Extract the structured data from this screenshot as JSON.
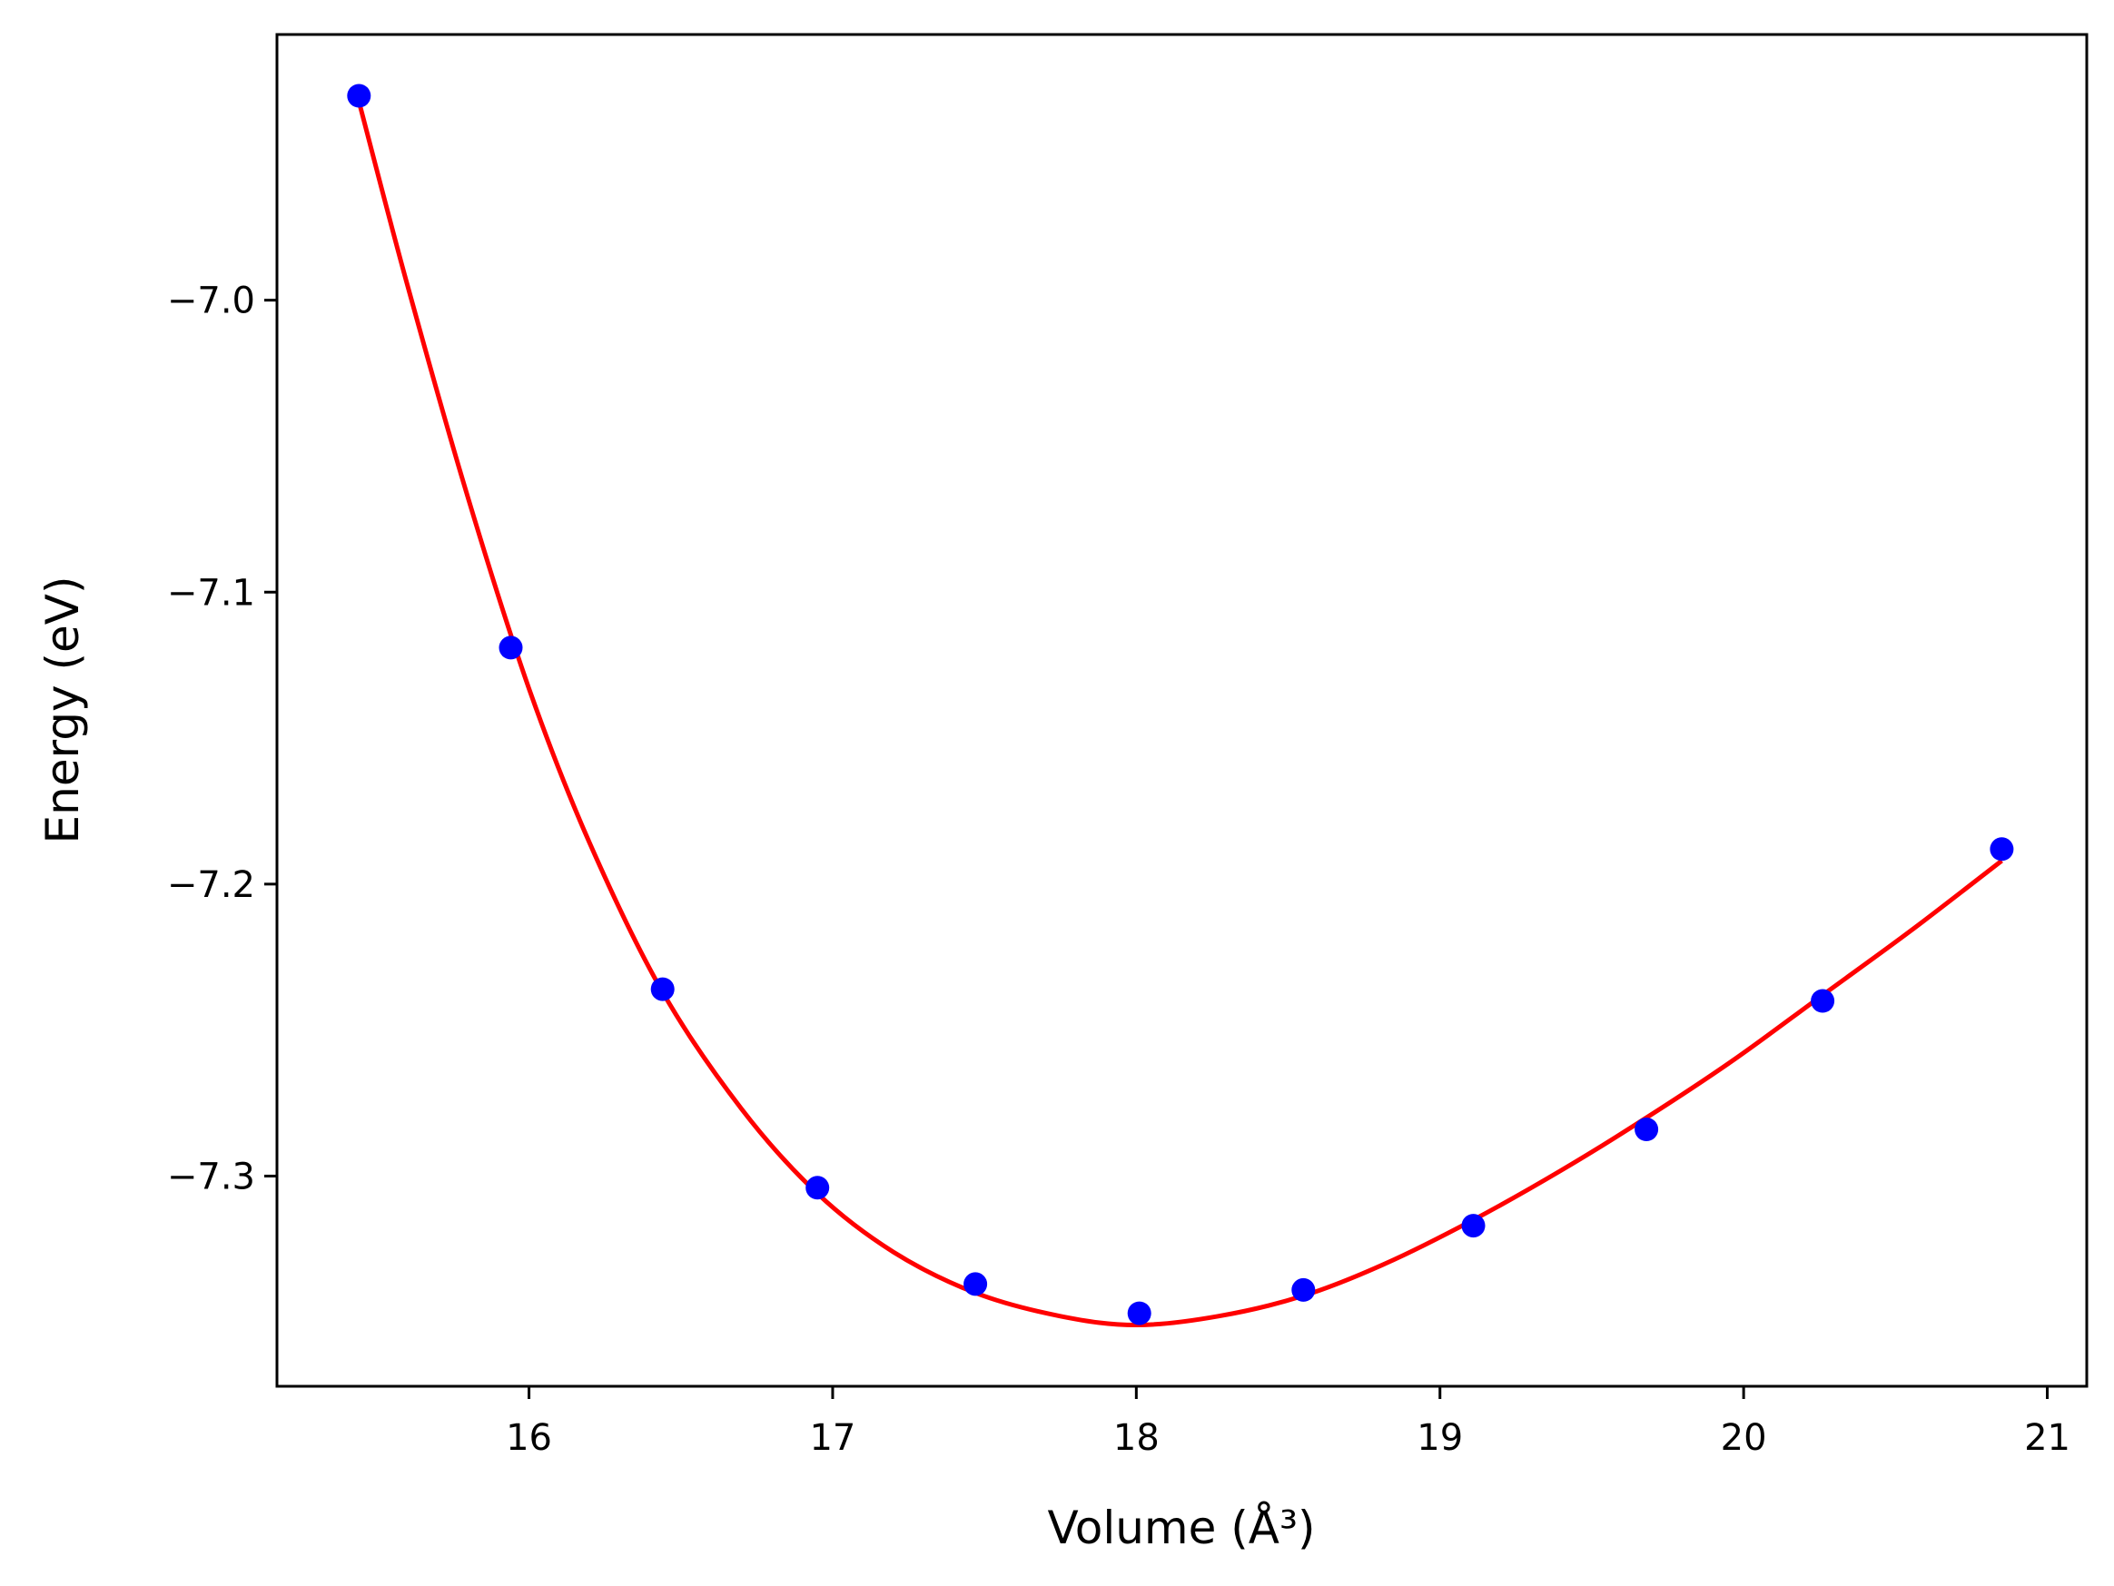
{
  "chart_data": {
    "type": "scatter",
    "xlabel": "Volume (Å³)",
    "ylabel": "Energy (eV)",
    "xlim": [
      15.17,
      21.13
    ],
    "ylim": [
      -7.372,
      -6.909
    ],
    "grid": false,
    "x_ticks": [
      {
        "value": 16,
        "label": "16"
      },
      {
        "value": 17,
        "label": "17"
      },
      {
        "value": 18,
        "label": "18"
      },
      {
        "value": 19,
        "label": "19"
      },
      {
        "value": 20,
        "label": "20"
      },
      {
        "value": 21,
        "label": "21"
      }
    ],
    "y_ticks": [
      {
        "value": -7.0,
        "label": "−7.0"
      },
      {
        "value": -7.1,
        "label": "−7.1"
      },
      {
        "value": -7.2,
        "label": "−7.2"
      },
      {
        "value": -7.3,
        "label": "−7.3"
      }
    ],
    "series": [
      {
        "kind": "scatter",
        "color": "#0000ff",
        "points": [
          {
            "x": 15.44,
            "y": -6.93
          },
          {
            "x": 15.94,
            "y": -7.119
          },
          {
            "x": 16.44,
            "y": -7.236
          },
          {
            "x": 16.95,
            "y": -7.304
          },
          {
            "x": 17.47,
            "y": -7.337
          },
          {
            "x": 18.01,
            "y": -7.347
          },
          {
            "x": 18.55,
            "y": -7.339
          },
          {
            "x": 19.11,
            "y": -7.317
          },
          {
            "x": 19.68,
            "y": -7.284
          },
          {
            "x": 20.26,
            "y": -7.24
          },
          {
            "x": 20.85,
            "y": -7.188
          }
        ]
      },
      {
        "kind": "line",
        "color": "#ff0000",
        "points": [
          {
            "x": 15.44,
            "y": -6.932
          },
          {
            "x": 15.6,
            "y": -6.995
          },
          {
            "x": 15.8,
            "y": -7.068
          },
          {
            "x": 16.0,
            "y": -7.133
          },
          {
            "x": 16.2,
            "y": -7.186
          },
          {
            "x": 16.44,
            "y": -7.237
          },
          {
            "x": 16.7,
            "y": -7.277
          },
          {
            "x": 16.95,
            "y": -7.306
          },
          {
            "x": 17.2,
            "y": -7.326
          },
          {
            "x": 17.47,
            "y": -7.34
          },
          {
            "x": 17.75,
            "y": -7.348
          },
          {
            "x": 18.0,
            "y": -7.351
          },
          {
            "x": 18.27,
            "y": -7.348
          },
          {
            "x": 18.55,
            "y": -7.341
          },
          {
            "x": 18.82,
            "y": -7.33
          },
          {
            "x": 19.11,
            "y": -7.315
          },
          {
            "x": 19.4,
            "y": -7.298
          },
          {
            "x": 19.68,
            "y": -7.28
          },
          {
            "x": 19.97,
            "y": -7.26
          },
          {
            "x": 20.26,
            "y": -7.238
          },
          {
            "x": 20.55,
            "y": -7.216
          },
          {
            "x": 20.85,
            "y": -7.192
          }
        ]
      }
    ]
  }
}
